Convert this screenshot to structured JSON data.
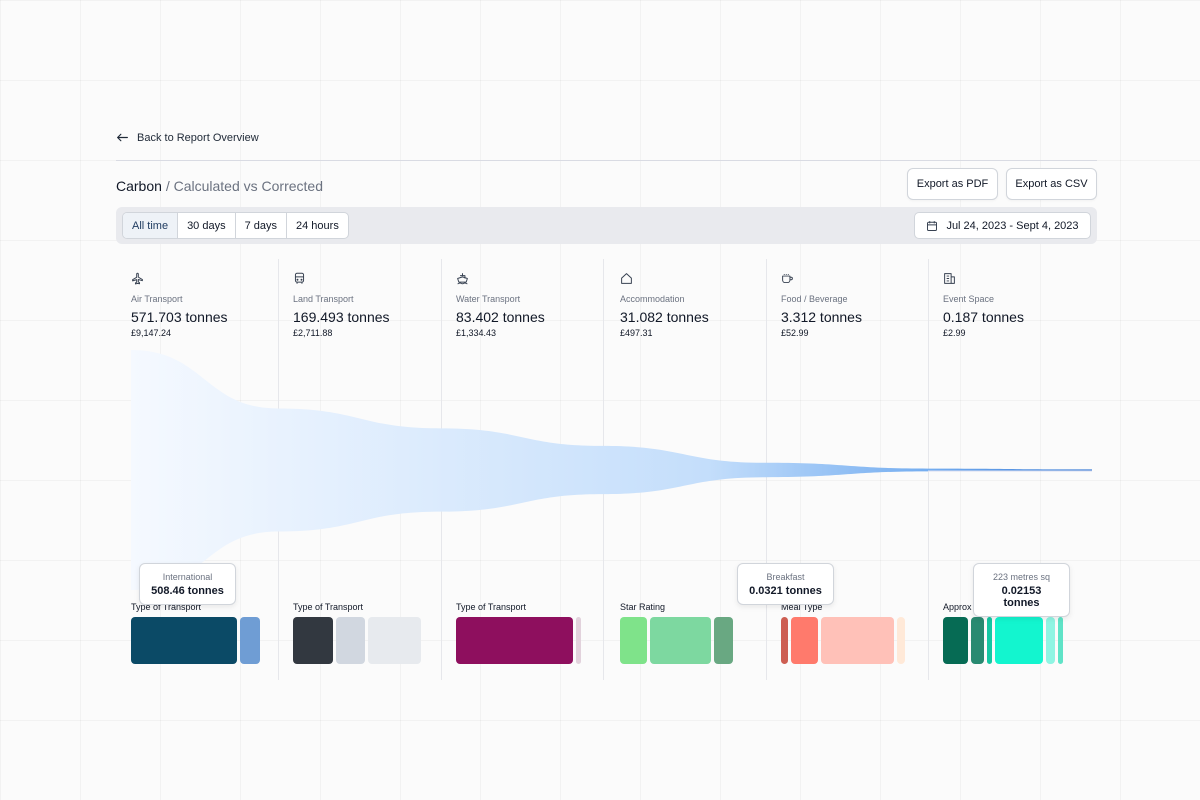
{
  "nav": {
    "back_label": "Back to Report Overview"
  },
  "header": {
    "title_strong": "Carbon",
    "title_muted": "/ Calculated vs Corrected",
    "export_pdf": "Export as PDF",
    "export_csv": "Export as CSV"
  },
  "filters": {
    "ranges": [
      "All time",
      "30 days",
      "7 days",
      "24 hours"
    ],
    "active_range": "All time",
    "date_range": "Jul 24, 2023 - Sept 4, 2023"
  },
  "categories": [
    {
      "icon": "plane-icon",
      "label": "Air Transport",
      "value": "571.703 tonnes",
      "cost": "£9,147.24",
      "sub_label": "Type of Transport"
    },
    {
      "icon": "bus-icon",
      "label": "Land Transport",
      "value": "169.493 tonnes",
      "cost": "£2,711.88",
      "sub_label": "Type of Transport"
    },
    {
      "icon": "ship-icon",
      "label": "Water Transport",
      "value": "83.402 tonnes",
      "cost": "£1,334.43",
      "sub_label": "Type of Transport"
    },
    {
      "icon": "home-icon",
      "label": "Accommodation",
      "value": "31.082 tonnes",
      "cost": "£497.31",
      "sub_label": "Star Rating"
    },
    {
      "icon": "cup-icon",
      "label": "Food / Beverage",
      "value": "3.312 tonnes",
      "cost": "£52.99",
      "sub_label": "Meal Type"
    },
    {
      "icon": "building-icon",
      "label": "Event Space",
      "value": "0.187 tonnes",
      "cost": "£2.99",
      "sub_label": "Approx Size"
    }
  ],
  "breakdowns": [
    [
      {
        "color": "#0b4a66",
        "share": 0.8
      },
      {
        "color": "#6f9dd4",
        "share": 0.15
      }
    ],
    [
      {
        "color": "#323840",
        "share": 0.3
      },
      {
        "color": "#d1d7e0",
        "share": 0.22
      },
      {
        "color": "#e7eaee",
        "share": 0.4
      }
    ],
    [
      {
        "color": "#8e0f5e",
        "share": 0.88
      },
      {
        "color": "#e2d2dc",
        "share": 0.04
      }
    ],
    [
      {
        "color": "#7fe38a",
        "share": 0.2
      },
      {
        "color": "#7dd8a0",
        "share": 0.46
      },
      {
        "color": "#69a882",
        "share": 0.14
      }
    ],
    [
      {
        "color": "#cd5e52",
        "share": 0.05
      },
      {
        "color": "#ff7a6c",
        "share": 0.2
      },
      {
        "color": "#ffc1b8",
        "share": 0.55
      },
      {
        "color": "#ffe9d8",
        "share": 0.06
      }
    ],
    [
      {
        "color": "#066b54",
        "share": 0.19
      },
      {
        "color": "#298a71",
        "share": 0.1
      },
      {
        "color": "#15c7a3",
        "share": 0.04
      },
      {
        "color": "#13f5cf",
        "share": 0.36
      },
      {
        "color": "#8ff5e3",
        "share": 0.07
      },
      {
        "color": "#5fe3c7",
        "share": 0.04
      }
    ]
  ],
  "tooltips": [
    {
      "label": "International",
      "value": "508.46 tonnes"
    },
    {
      "label": "Breakfast",
      "value": "0.0321 tonnes"
    },
    {
      "label": "223 metres sq",
      "value": "0.02153 tonnes"
    }
  ],
  "funnel": {
    "colors": {
      "start": "#f4f8fe",
      "mid": "#c9e1fb",
      "end": "#3e7ed6"
    },
    "relative_widths": [
      1.0,
      0.297,
      0.146,
      0.054,
      0.006,
      0.0003
    ]
  }
}
